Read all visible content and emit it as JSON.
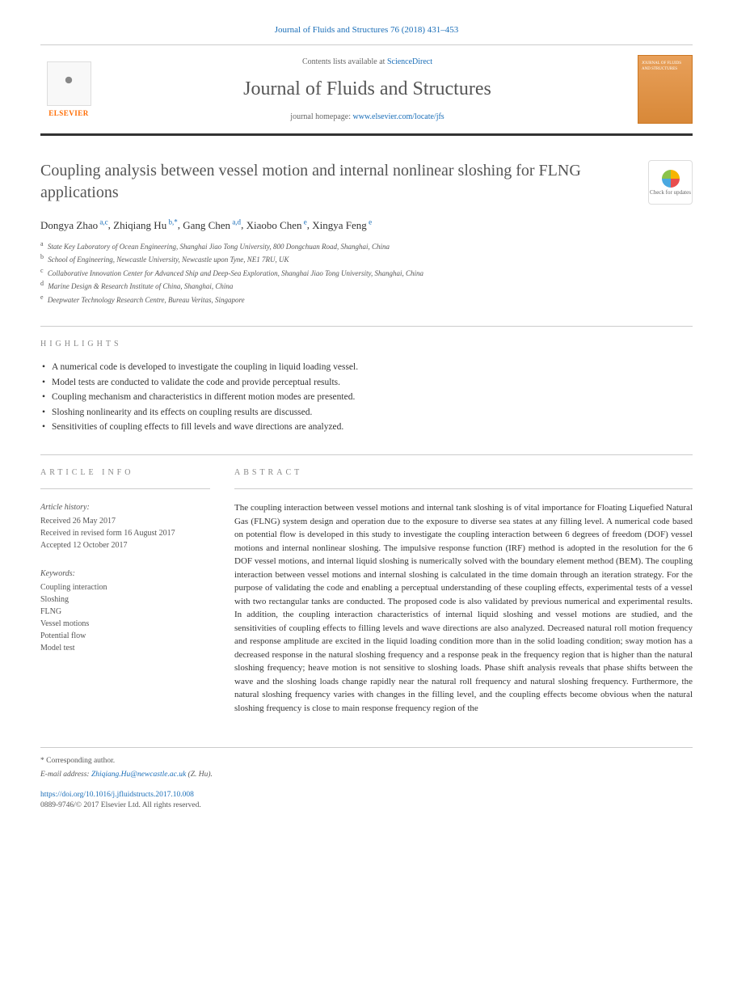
{
  "top_citation": "Journal of Fluids and Structures 76 (2018) 431–453",
  "header": {
    "contents_prefix": "Contents lists available at ",
    "contents_link": "ScienceDirect",
    "journal_name": "Journal of Fluids and Structures",
    "homepage_prefix": "journal homepage: ",
    "homepage_url": "www.elsevier.com/locate/jfs",
    "elsevier_label": "ELSEVIER",
    "cover_text": "JOURNAL OF FLUIDS AND STRUCTURES"
  },
  "check_updates": "Check for updates",
  "title": "Coupling analysis between vessel motion and internal nonlinear sloshing for FLNG applications",
  "authors_html": "Dongya Zhao|a,c|, Zhiqiang Hu|b,*|, Gang Chen|a,d|, Xiaobo Chen|e|, Xingya Feng|e|",
  "authors": [
    {
      "name": "Dongya Zhao",
      "sup": "a,c"
    },
    {
      "name": "Zhiqiang Hu",
      "sup": "b,*"
    },
    {
      "name": "Gang Chen",
      "sup": "a,d"
    },
    {
      "name": "Xiaobo Chen",
      "sup": "e"
    },
    {
      "name": "Xingya Feng",
      "sup": "e"
    }
  ],
  "affiliations": [
    {
      "sup": "a",
      "text": "State Key Laboratory of Ocean Engineering, Shanghai Jiao Tong University, 800 Dongchuan Road, Shanghai, China"
    },
    {
      "sup": "b",
      "text": "School of Engineering, Newcastle University, Newcastle upon Tyne, NE1 7RU, UK"
    },
    {
      "sup": "c",
      "text": "Collaborative Innovation Center for Advanced Ship and Deep-Sea Exploration, Shanghai Jiao Tong University, Shanghai, China"
    },
    {
      "sup": "d",
      "text": "Marine Design & Research Institute of China, Shanghai, China"
    },
    {
      "sup": "e",
      "text": "Deepwater Technology Research Centre, Bureau Veritas, Singapore"
    }
  ],
  "highlights_label": "HIGHLIGHTS",
  "highlights": [
    "A numerical code is developed to investigate the coupling in liquid loading vessel.",
    "Model tests are conducted to validate the code and provide perceptual results.",
    "Coupling mechanism and characteristics in different motion modes are presented.",
    "Sloshing nonlinearity and its effects on coupling results are discussed.",
    "Sensitivities of coupling effects to fill levels and wave directions are analyzed."
  ],
  "article_info_label": "ARTICLE INFO",
  "article_history": {
    "title": "Article history:",
    "received": "Received 26 May 2017",
    "revised": "Received in revised form 16 August 2017",
    "accepted": "Accepted 12 October 2017"
  },
  "keywords_title": "Keywords:",
  "keywords": [
    "Coupling interaction",
    "Sloshing",
    "FLNG",
    "Vessel motions",
    "Potential flow",
    "Model test"
  ],
  "abstract_label": "ABSTRACT",
  "abstract": "The coupling interaction between vessel motions and internal tank sloshing is of vital importance for Floating Liquefied Natural Gas (FLNG) system design and operation due to the exposure to diverse sea states at any filling level. A numerical code based on potential flow is developed in this study to investigate the coupling interaction between 6 degrees of freedom (DOF) vessel motions and internal nonlinear sloshing. The impulsive response function (IRF) method is adopted in the resolution for the 6 DOF vessel motions, and internal liquid sloshing is numerically solved with the boundary element method (BEM). The coupling interaction between vessel motions and internal sloshing is calculated in the time domain through an iteration strategy. For the purpose of validating the code and enabling a perceptual understanding of these coupling effects, experimental tests of a vessel with two rectangular tanks are conducted. The proposed code is also validated by previous numerical and experimental results. In addition, the coupling interaction characteristics of internal liquid sloshing and vessel motions are studied, and the sensitivities of coupling effects to filling levels and wave directions are also analyzed. Decreased natural roll motion frequency and response amplitude are excited in the liquid loading condition more than in the solid loading condition; sway motion has a decreased response in the natural sloshing frequency and a response peak in the frequency region that is higher than the natural sloshing frequency; heave motion is not sensitive to sloshing loads. Phase shift analysis reveals that phase shifts between the wave and the sloshing loads change rapidly near the natural roll frequency and natural sloshing frequency. Furthermore, the natural sloshing frequency varies with changes in the filling level, and the coupling effects become obvious when the natural sloshing frequency is close to main response frequency region of the",
  "footer": {
    "corr_label": "* Corresponding author.",
    "email_label": "E-mail address: ",
    "email": "Zhiqiang.Hu@newcastle.ac.uk",
    "email_suffix": " (Z. Hu).",
    "doi": "https://doi.org/10.1016/j.jfluidstructs.2017.10.008",
    "copyright": "0889-9746/© 2017 Elsevier Ltd. All rights reserved."
  },
  "colors": {
    "link": "#1a6eb8",
    "elsevier_orange": "#ff6b00",
    "text": "#333333",
    "muted": "#666666",
    "border": "#cccccc",
    "cover_bg": "#e8a05a"
  }
}
